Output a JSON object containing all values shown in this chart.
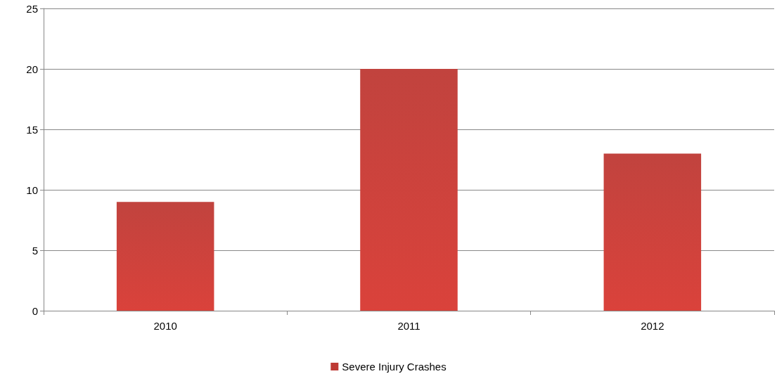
{
  "chart_data": {
    "type": "bar",
    "categories": [
      "2010",
      "2011",
      "2012"
    ],
    "series": [
      {
        "name": "Severe Injury Crashes",
        "color": "#be3a34",
        "values": [
          9,
          20,
          13
        ]
      }
    ],
    "ylim": [
      0,
      25
    ],
    "yticks": [
      0,
      5,
      10,
      15,
      20,
      25
    ],
    "grid": "y",
    "legend": "bottom"
  }
}
